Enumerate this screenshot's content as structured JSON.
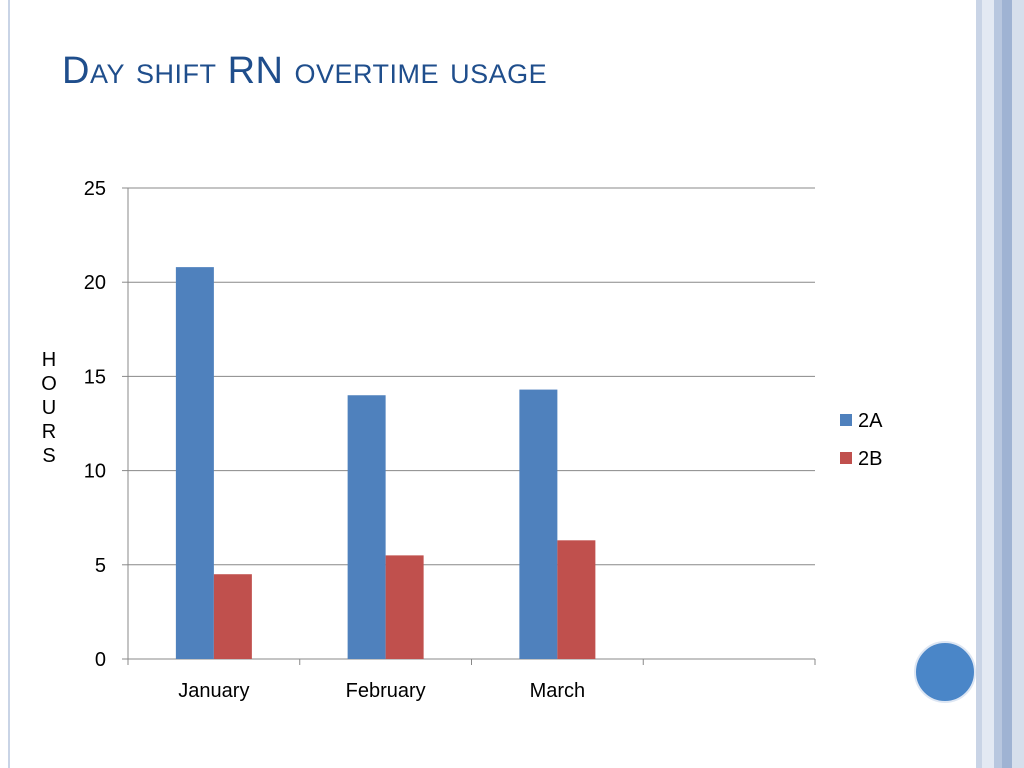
{
  "slide": {
    "title": "Day shift RN overtime usage"
  },
  "colors": {
    "title": "#1f4e8c",
    "series_2A": "#4f81bd",
    "series_2B": "#c0504d",
    "gridline": "#888888",
    "accent_circle": "#4a86c8",
    "frame_stripes": [
      "#c9d4e6",
      "#e3e9f3",
      "#b8c7df",
      "#9fb3d3",
      "#d6dfec"
    ]
  },
  "decor": {
    "circle_icon": "filled-circle"
  },
  "chart_data": {
    "type": "bar",
    "title": "",
    "xlabel": "",
    "ylabel": "HOURS",
    "ylabel_letters": [
      "H",
      "O",
      "U",
      "R",
      "S"
    ],
    "categories": [
      "January",
      "February",
      "March",
      ""
    ],
    "series": [
      {
        "name": "2A",
        "values": [
          20.8,
          14.0,
          14.3,
          null
        ]
      },
      {
        "name": "2B",
        "values": [
          4.5,
          5.5,
          6.3,
          null
        ]
      }
    ],
    "ylim": [
      0,
      25
    ],
    "yticks": [
      0,
      5,
      10,
      15,
      20,
      25
    ],
    "grid": true,
    "legend": "right"
  }
}
